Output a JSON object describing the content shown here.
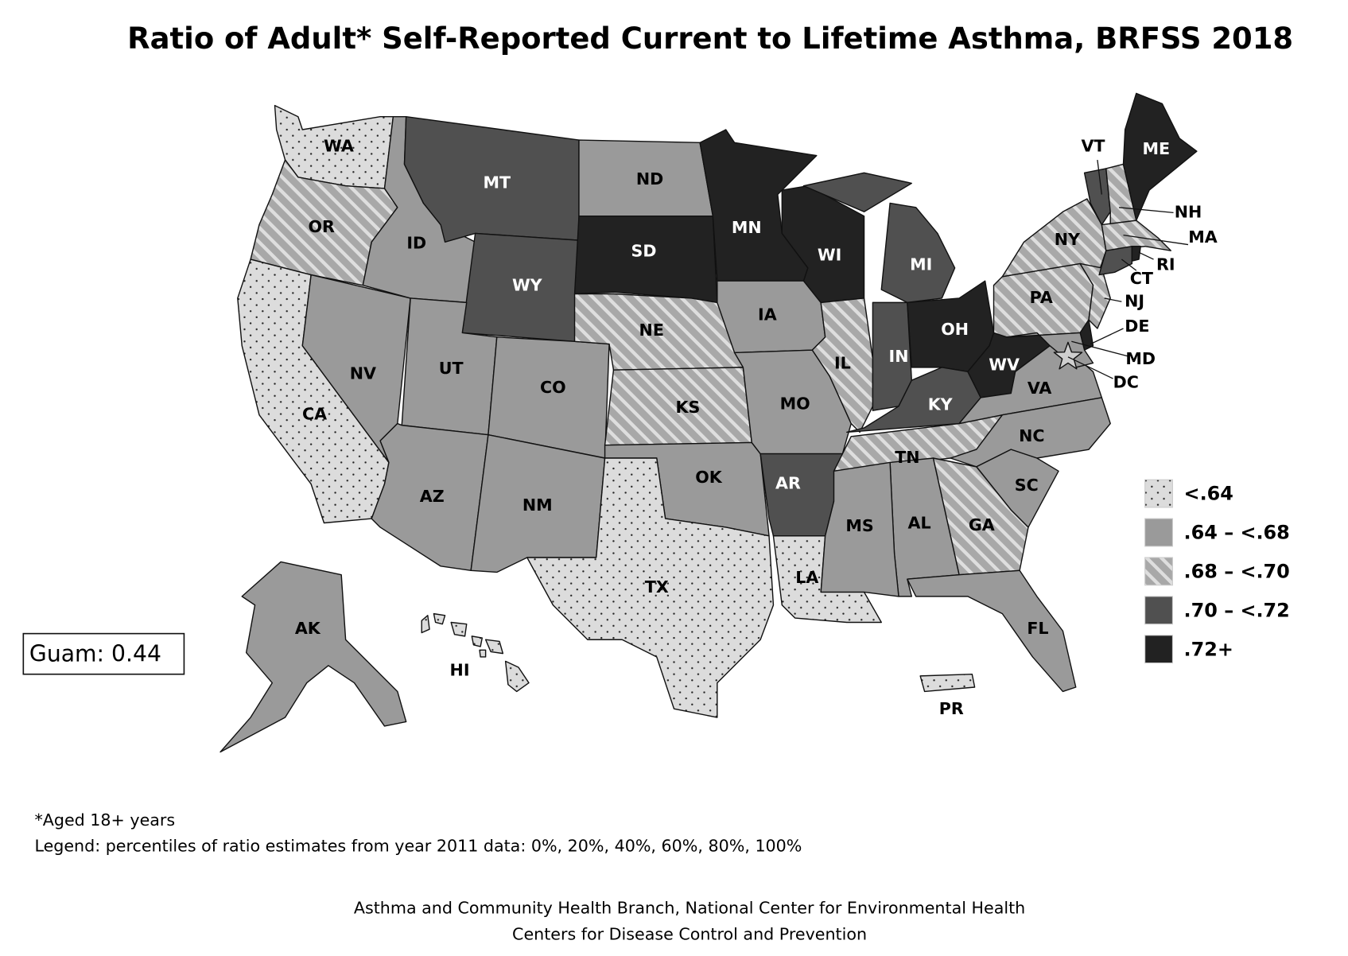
{
  "title": "Ratio of Adult* Self-Reported Current to Lifetime Asthma, BRFSS 2018",
  "legend": [
    {
      "label": "<.64",
      "pattern": "dots",
      "color": "#dcdcdc"
    },
    {
      "label": ".64 – <.68",
      "pattern": "solid",
      "color": "#9a9a9a"
    },
    {
      "label": ".68 – <.70",
      "pattern": "stripes",
      "color": "#b8b8b8"
    },
    {
      "label": ".70 – <.72",
      "pattern": "solid",
      "color": "#505050"
    },
    {
      "label": ".72+",
      "pattern": "solid",
      "color": "#222222"
    }
  ],
  "states": [
    {
      "abbr": "WA",
      "cat": 0
    },
    {
      "abbr": "OR",
      "cat": 2
    },
    {
      "abbr": "CA",
      "cat": 0
    },
    {
      "abbr": "NV",
      "cat": 1
    },
    {
      "abbr": "ID",
      "cat": 1
    },
    {
      "abbr": "MT",
      "cat": 3
    },
    {
      "abbr": "WY",
      "cat": 3
    },
    {
      "abbr": "UT",
      "cat": 1
    },
    {
      "abbr": "CO",
      "cat": 1
    },
    {
      "abbr": "AZ",
      "cat": 1
    },
    {
      "abbr": "NM",
      "cat": 1
    },
    {
      "abbr": "ND",
      "cat": 1
    },
    {
      "abbr": "SD",
      "cat": 4
    },
    {
      "abbr": "NE",
      "cat": 2
    },
    {
      "abbr": "KS",
      "cat": 2
    },
    {
      "abbr": "OK",
      "cat": 1
    },
    {
      "abbr": "TX",
      "cat": 0
    },
    {
      "abbr": "MN",
      "cat": 4
    },
    {
      "abbr": "IA",
      "cat": 1
    },
    {
      "abbr": "MO",
      "cat": 1
    },
    {
      "abbr": "AR",
      "cat": 3
    },
    {
      "abbr": "LA",
      "cat": 0
    },
    {
      "abbr": "WI",
      "cat": 4
    },
    {
      "abbr": "IL",
      "cat": 2
    },
    {
      "abbr": "MI",
      "cat": 3
    },
    {
      "abbr": "IN",
      "cat": 3
    },
    {
      "abbr": "OH",
      "cat": 4
    },
    {
      "abbr": "KY",
      "cat": 3
    },
    {
      "abbr": "TN",
      "cat": 2
    },
    {
      "abbr": "WV",
      "cat": 4
    },
    {
      "abbr": "VA",
      "cat": 1
    },
    {
      "abbr": "NC",
      "cat": 1
    },
    {
      "abbr": "SC",
      "cat": 1
    },
    {
      "abbr": "GA",
      "cat": 2
    },
    {
      "abbr": "AL",
      "cat": 1
    },
    {
      "abbr": "MS",
      "cat": 1
    },
    {
      "abbr": "FL",
      "cat": 1
    },
    {
      "abbr": "PA",
      "cat": 2
    },
    {
      "abbr": "NY",
      "cat": 2
    },
    {
      "abbr": "NJ",
      "cat": 2
    },
    {
      "abbr": "DE",
      "cat": 4
    },
    {
      "abbr": "MD",
      "cat": 1
    },
    {
      "abbr": "DC",
      "cat": 0
    },
    {
      "abbr": "VT",
      "cat": 3
    },
    {
      "abbr": "NH",
      "cat": 2
    },
    {
      "abbr": "ME",
      "cat": 4
    },
    {
      "abbr": "MA",
      "cat": 2
    },
    {
      "abbr": "CT",
      "cat": 3
    },
    {
      "abbr": "RI",
      "cat": 4
    },
    {
      "abbr": "AK",
      "cat": 1
    },
    {
      "abbr": "HI",
      "cat": 0
    },
    {
      "abbr": "PR",
      "cat": 0
    }
  ],
  "guam": "Guam: 0.44",
  "footnote": "*Aged 18+ years",
  "legend_note": "Legend: percentiles of ratio estimates from year 2011 data: 0%, 20%, 40%, 60%, 80%, 100%",
  "credit": [
    "Asthma and Community Health Branch, National Center for Environmental Health",
    "Centers for Disease Control and Prevention"
  ]
}
